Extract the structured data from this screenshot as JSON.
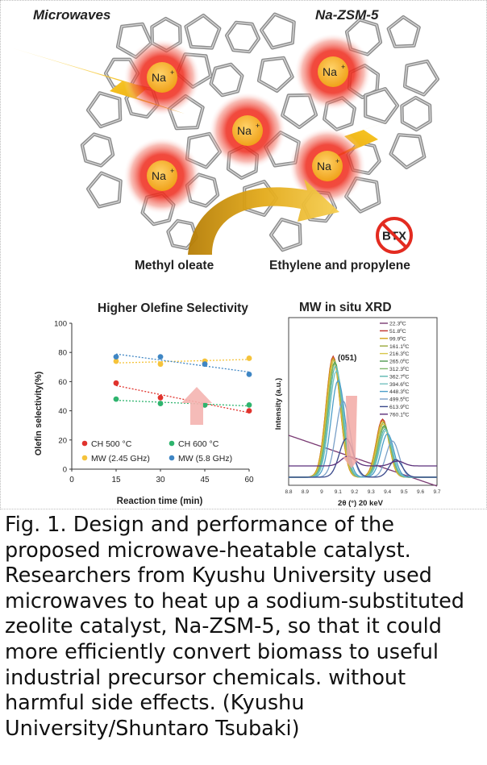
{
  "scheme": {
    "label_microwaves": "Microwaves",
    "label_framework": "Na-ZSM-5",
    "cation_label": "Na",
    "cation_charge": "+",
    "label_reactant": "Methyl oleate",
    "label_products": "Ethylene and propylene",
    "no_symbol_label": "BTX",
    "colors": {
      "lattice": "#8c8c8c",
      "cation_glow": "#e8281c",
      "cation_core": "#f4b02a",
      "bolt": "#f2b418",
      "arrow": "#d9a215"
    }
  },
  "chart_data": [
    {
      "type": "scatter",
      "title": "Higher Olefine Selectivity",
      "xlabel": "Reaction time (min)",
      "ylabel": "Olefin selectivity(%)",
      "xlim": [
        0,
        60
      ],
      "ylim": [
        0,
        100
      ],
      "xticks": [
        0,
        15,
        30,
        45,
        60
      ],
      "yticks": [
        0,
        20,
        40,
        60,
        80,
        100
      ],
      "trendlines": "dotted",
      "legend_position": "bottom",
      "series": [
        {
          "name": "CH 500 °C",
          "color": "#e0332d",
          "x": [
            15,
            30,
            45,
            60
          ],
          "y": [
            59,
            49,
            44,
            40
          ]
        },
        {
          "name": "CH 600 °C",
          "color": "#2fb46e",
          "x": [
            15,
            30,
            45,
            60
          ],
          "y": [
            48,
            45,
            44,
            44
          ]
        },
        {
          "name": "MW (2.45 GHz)",
          "color": "#f5c33b",
          "x": [
            15,
            30,
            45,
            60
          ],
          "y": [
            74,
            72,
            74,
            76
          ]
        },
        {
          "name": "MW (5.8 GHz)",
          "color": "#3f86c4",
          "x": [
            15,
            30,
            45,
            60
          ],
          "y": [
            77,
            77,
            72,
            65
          ]
        }
      ]
    },
    {
      "type": "line",
      "title": "MW in situ XRD",
      "xlabel": "2θ (°) 20 keV",
      "ylabel": "Intensity (a.u.)",
      "xlim": [
        8.8,
        9.7
      ],
      "xticks": [
        "8.8",
        "8.9",
        "9",
        "9.1",
        "9.2",
        "9.3",
        "9.4",
        "9.5",
        "9.6",
        "9.7"
      ],
      "annotation": "(051)",
      "legend_position": "top-right",
      "series": [
        {
          "name": "22.3ºC",
          "color": "#7a3b73"
        },
        {
          "name": "51.8ºC",
          "color": "#c0322e"
        },
        {
          "name": "99.9ºC",
          "color": "#d4a017"
        },
        {
          "name": "161.1ºC",
          "color": "#9aa83a"
        },
        {
          "name": "216.3ºC",
          "color": "#d8c64a"
        },
        {
          "name": "265.0ºC",
          "color": "#4e9a4e"
        },
        {
          "name": "312.3ºC",
          "color": "#7fb86a"
        },
        {
          "name": "362.7ºC",
          "color": "#5bb6b0"
        },
        {
          "name": "394.6ºC",
          "color": "#74c2c0"
        },
        {
          "name": "448.3ºC",
          "color": "#4d9ec9"
        },
        {
          "name": "499.5ºC",
          "color": "#7aa0c8"
        },
        {
          "name": "613.9ºC",
          "color": "#3b4a8c"
        },
        {
          "name": "760.1ºC",
          "color": "#5b2f7a"
        }
      ]
    }
  ],
  "caption": "Fig. 1. Design and performance of the proposed microwave-heatable catalyst. Researchers from Kyushu University used microwaves to heat up a sodium-substituted zeolite catalyst, Na-ZSM-5, so that it could more efficiently convert biomass to useful industrial precursor chemicals. without harmful side effects. (Kyushu University/Shuntaro Tsubaki)"
}
